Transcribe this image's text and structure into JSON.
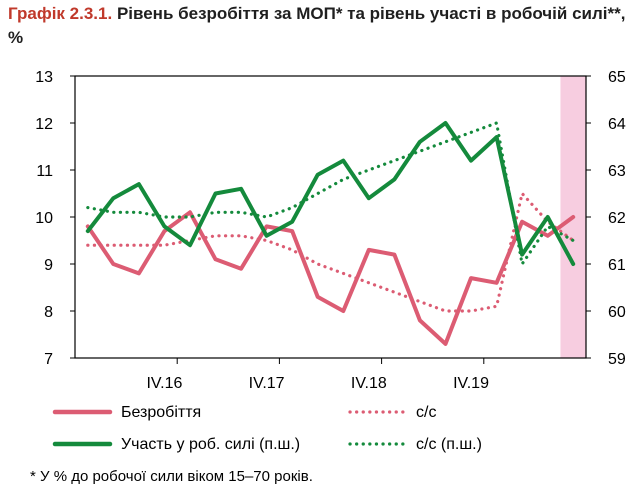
{
  "title": {
    "number": "Графік 2.3.1.",
    "text": "Рівень безробіття за МОП* та рівень участі в робочій силі**, %"
  },
  "footnote": "* У % до робочої сили віком 15–70 років.",
  "colors": {
    "unemployment": "#dc5c73",
    "participation": "#148a3c",
    "shade": "#f7cde0",
    "axis": "#000000"
  },
  "chart_data": {
    "type": "line",
    "x": [
      "I.16",
      "II.16",
      "III.16",
      "IV.16",
      "I.17",
      "II.17",
      "III.17",
      "IV.17",
      "I.18",
      "II.18",
      "III.18",
      "IV.18",
      "I.19",
      "II.19",
      "III.19",
      "IV.19",
      "I.20",
      "II.20",
      "III.20",
      "IV.20"
    ],
    "tick_labels": [
      "IV.16",
      "IV.17",
      "IV.18",
      "IV.19"
    ],
    "ylim_left": [
      7,
      13
    ],
    "yticks_left": [
      7,
      8,
      9,
      10,
      11,
      12,
      13
    ],
    "ylim_right": [
      59,
      65
    ],
    "yticks_right": [
      59,
      60,
      61,
      62,
      63,
      64,
      65
    ],
    "shaded_range": [
      "IV.20"
    ],
    "series": [
      {
        "name": "Безробіття",
        "axis": "left",
        "style": "solid",
        "color": "#dc5c73",
        "values": [
          9.8,
          9.0,
          8.8,
          9.7,
          10.1,
          9.1,
          8.9,
          9.8,
          9.7,
          8.3,
          8.0,
          9.3,
          9.2,
          7.8,
          7.3,
          8.7,
          8.6,
          9.9,
          9.6,
          10.0
        ]
      },
      {
        "name": "с/с",
        "axis": "left",
        "style": "dotted",
        "color": "#dc5c73",
        "values": [
          9.4,
          9.4,
          9.4,
          9.4,
          9.5,
          9.6,
          9.6,
          9.5,
          9.3,
          9.0,
          8.8,
          8.6,
          8.4,
          8.2,
          8.0,
          8.0,
          8.1,
          10.5,
          9.9,
          9.5
        ]
      },
      {
        "name": "Участь у роб. силі (п.ш.)",
        "axis": "right",
        "style": "solid",
        "color": "#148a3c",
        "values": [
          61.7,
          62.4,
          62.7,
          61.8,
          61.4,
          62.5,
          62.6,
          61.6,
          61.9,
          62.9,
          63.2,
          62.4,
          62.8,
          63.6,
          64.0,
          63.2,
          63.7,
          61.2,
          62.0,
          61.0
        ]
      },
      {
        "name": "с/с (п.ш.)",
        "axis": "right",
        "style": "dotted",
        "color": "#148a3c",
        "values": [
          62.2,
          62.1,
          62.1,
          62.0,
          62.0,
          62.1,
          62.1,
          62.0,
          62.2,
          62.5,
          62.8,
          63.0,
          63.2,
          63.4,
          63.6,
          63.8,
          64.0,
          61.0,
          61.8,
          61.5
        ]
      }
    ],
    "legend": [
      {
        "label": "Безробіття",
        "series": 0
      },
      {
        "label": "с/с",
        "series": 1
      },
      {
        "label": "Участь у роб. силі (п.ш.)",
        "series": 2
      },
      {
        "label": "с/с (п.ш.)",
        "series": 3
      }
    ]
  }
}
